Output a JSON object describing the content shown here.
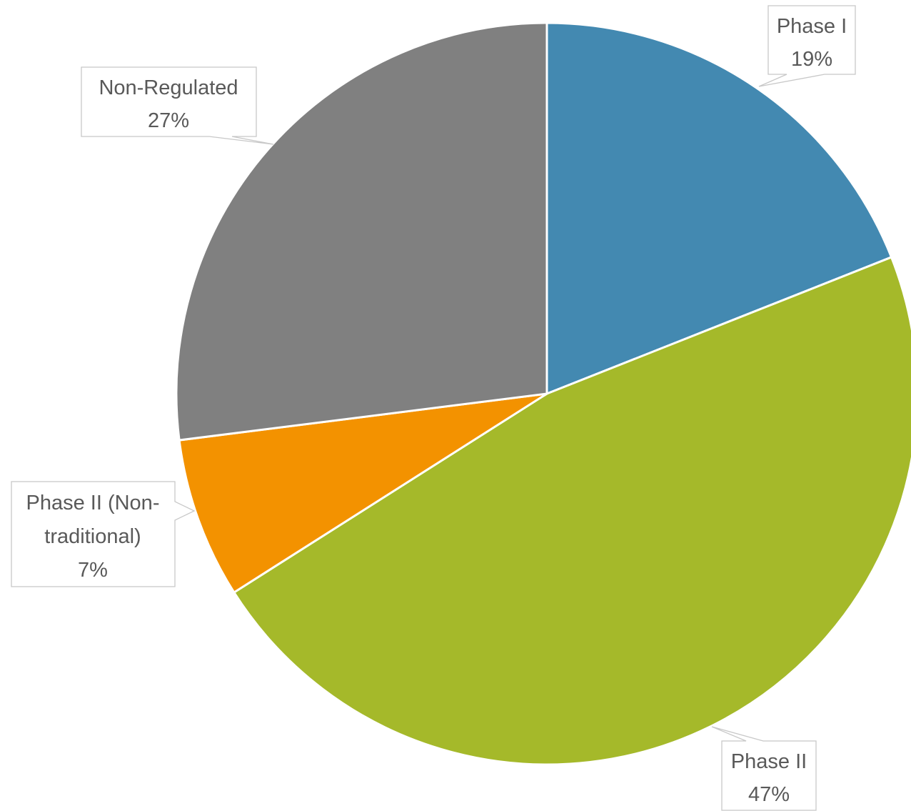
{
  "chart_data": {
    "type": "pie",
    "title": "",
    "legend": "none",
    "start_angle_deg": 0,
    "direction": "clockwise",
    "slices": [
      {
        "label": "Phase I",
        "value": 19,
        "value_label": "19%",
        "color": "#4389b1"
      },
      {
        "label": "Phase II",
        "value": 47,
        "value_label": "47%",
        "color": "#a5b92a"
      },
      {
        "label": "Phase II (Non-traditional)",
        "label_lines": [
          "Phase II (Non-",
          "traditional)"
        ],
        "value": 7,
        "value_label": "7%",
        "color": "#f39200"
      },
      {
        "label": "Non-Regulated",
        "value": 27,
        "value_label": "27%",
        "color": "#808080"
      }
    ]
  }
}
